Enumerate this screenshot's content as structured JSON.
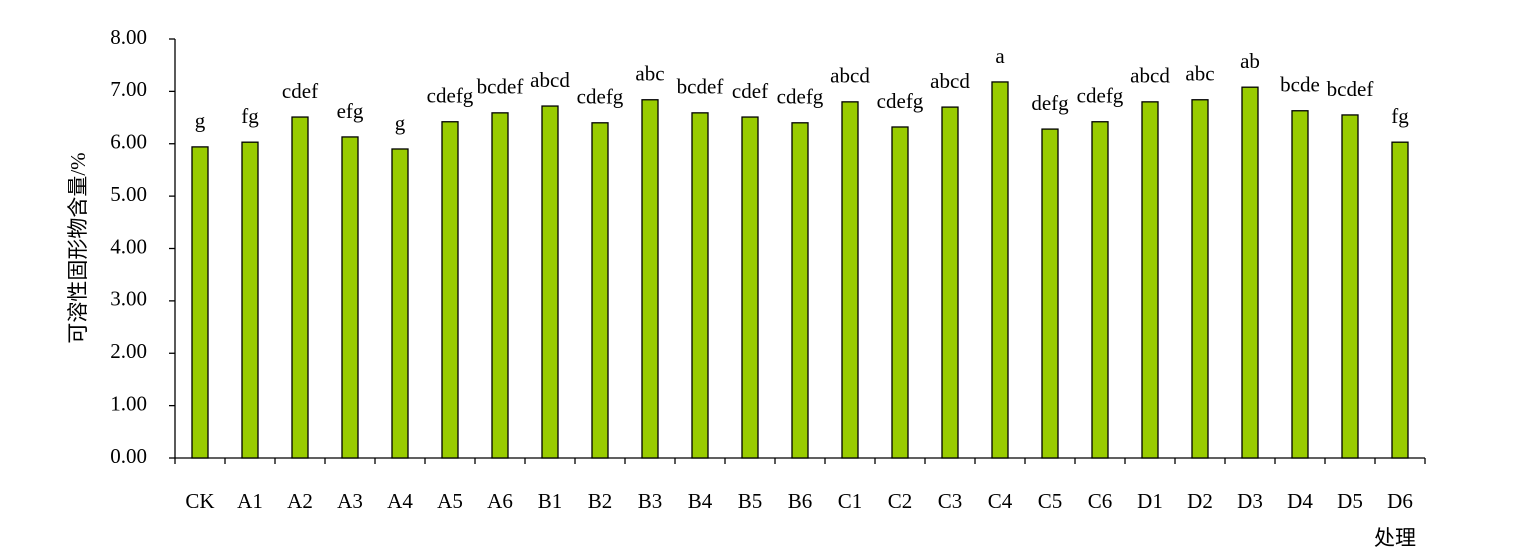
{
  "chart_data": {
    "type": "bar",
    "y_label": "可溶性固形物含量/%",
    "x_label": "处理",
    "categories": [
      "CK",
      "A1",
      "A2",
      "A3",
      "A4",
      "A5",
      "A6",
      "B1",
      "B2",
      "B3",
      "B4",
      "B5",
      "B6",
      "C1",
      "C2",
      "C3",
      "C4",
      "C5",
      "C6",
      "D1",
      "D2",
      "D3",
      "D4",
      "D5",
      "D6"
    ],
    "values": [
      5.94,
      6.03,
      6.51,
      6.13,
      5.9,
      6.42,
      6.59,
      6.72,
      6.4,
      6.84,
      6.59,
      6.51,
      6.4,
      6.8,
      6.32,
      6.7,
      7.18,
      6.28,
      6.42,
      6.8,
      6.84,
      7.08,
      6.63,
      6.55,
      6.03
    ],
    "letters": [
      "g",
      "fg",
      "cdef",
      "efg",
      "g",
      "cdefg",
      "bcdef",
      "abcd",
      "cdefg",
      "abc",
      "bcdef",
      "cdef",
      "cdefg",
      "abcd",
      "cdefg",
      "abcd",
      "a",
      "defg",
      "cdefg",
      "abcd",
      "abc",
      "ab",
      "bcde",
      "bcdef",
      "fg"
    ],
    "color": "#99cc00",
    "ylim": [
      0,
      8
    ],
    "yticks": [
      {
        "value": 0,
        "label": "0.00"
      },
      {
        "value": 1,
        "label": "1.00"
      },
      {
        "value": 2,
        "label": "2.00"
      },
      {
        "value": 3,
        "label": "3.00"
      },
      {
        "value": 4,
        "label": "4.00"
      },
      {
        "value": 5,
        "label": "5.00"
      },
      {
        "value": 6,
        "label": "6.00"
      },
      {
        "value": 7,
        "label": "7.00"
      },
      {
        "value": 8,
        "label": "8.00"
      }
    ],
    "grid": false
  }
}
